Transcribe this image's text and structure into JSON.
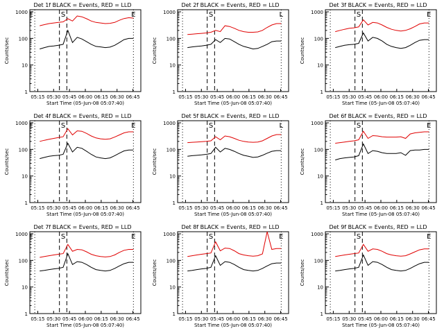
{
  "colors": {
    "events": "#000000",
    "lld": "#e00000",
    "axis": "#000000"
  },
  "common": {
    "ylabel": "Counts/sec",
    "xlabel": "Start Time (05-Jun-08 05:07:40)",
    "x_ticks": [
      "05:15",
      "05:30",
      "05:45",
      "06:00",
      "06:15",
      "06:30",
      "06:45"
    ],
    "y_ticks": [
      "1",
      "10",
      "100",
      "1000"
    ],
    "ylim": [
      1,
      1200
    ],
    "yscale": "log",
    "xlim_minutes": [
      5,
      50
    ]
  },
  "chart_data": [
    {
      "type": "line",
      "title": "Det 1f BLACK = Events, RED = LLD",
      "markers": [
        "E",
        "S",
        "E"
      ],
      "series": [
        {
          "name": "Events",
          "values": [
            40,
            45,
            50,
            52,
            55,
            60,
            200,
            70,
            110,
            95,
            75,
            60,
            50,
            48,
            45,
            47,
            55,
            70,
            90,
            100,
            100
          ]
        },
        {
          "name": "LLD",
          "values": [
            300,
            330,
            360,
            380,
            400,
            420,
            550,
            450,
            700,
            650,
            550,
            450,
            400,
            380,
            360,
            370,
            400,
            480,
            560,
            600,
            580
          ]
        }
      ]
    },
    {
      "type": "line",
      "title": "Det 2f BLACK = Events, RED = LLD",
      "markers": [
        "S",
        "L"
      ],
      "series": [
        {
          "name": "Events",
          "values": [
            45,
            48,
            50,
            52,
            55,
            60,
            90,
            70,
            100,
            95,
            75,
            60,
            50,
            45,
            40,
            42,
            50,
            60,
            75,
            80,
            80
          ]
        },
        {
          "name": "LLD",
          "values": [
            140,
            145,
            150,
            155,
            160,
            170,
            200,
            180,
            300,
            280,
            240,
            200,
            180,
            170,
            170,
            175,
            200,
            260,
            320,
            360,
            360
          ]
        }
      ]
    },
    {
      "type": "line",
      "title": "Det 3f BLACK = Events, RED = LLD",
      "markers": [
        "S",
        "E"
      ],
      "series": [
        {
          "name": "Events",
          "values": [
            45,
            50,
            55,
            58,
            60,
            65,
            160,
            80,
            110,
            100,
            80,
            60,
            50,
            45,
            42,
            45,
            55,
            70,
            85,
            90,
            90
          ]
        },
        {
          "name": "LLD",
          "values": [
            180,
            200,
            220,
            240,
            250,
            270,
            500,
            320,
            400,
            380,
            320,
            260,
            220,
            200,
            190,
            200,
            230,
            280,
            350,
            380,
            380
          ]
        }
      ]
    },
    {
      "type": "line",
      "title": "Det 4f BLACK = Events, RED = LLD",
      "markers": [
        "E",
        "S",
        "E"
      ],
      "series": [
        {
          "name": "Events",
          "values": [
            45,
            50,
            55,
            58,
            60,
            65,
            170,
            80,
            120,
            110,
            85,
            65,
            52,
            48,
            45,
            48,
            58,
            72,
            88,
            95,
            95
          ]
        },
        {
          "name": "LLD",
          "values": [
            200,
            220,
            240,
            260,
            280,
            300,
            600,
            350,
            500,
            480,
            400,
            320,
            270,
            250,
            240,
            250,
            290,
            350,
            420,
            460,
            460
          ]
        }
      ]
    },
    {
      "type": "line",
      "title": "Det 5f BLACK = Events, RED = LLD",
      "markers": [
        "S",
        "L"
      ],
      "series": [
        {
          "name": "Events",
          "values": [
            55,
            58,
            60,
            62,
            65,
            70,
            120,
            80,
            110,
            100,
            85,
            70,
            60,
            55,
            50,
            52,
            60,
            72,
            85,
            90,
            90
          ]
        },
        {
          "name": "LLD",
          "values": [
            180,
            185,
            190,
            195,
            200,
            210,
            300,
            230,
            320,
            300,
            260,
            220,
            200,
            190,
            185,
            190,
            210,
            260,
            320,
            360,
            360
          ]
        }
      ]
    },
    {
      "type": "line",
      "title": "Det 6f BLACK = Events, RED = LLD",
      "markers": [
        "S",
        "E"
      ],
      "series": [
        {
          "name": "Events",
          "values": [
            40,
            45,
            48,
            50,
            52,
            58,
            160,
            70,
            90,
            85,
            75,
            70,
            70,
            70,
            75,
            60,
            90,
            95,
            95,
            100,
            100
          ]
        },
        {
          "name": "LLD",
          "values": [
            170,
            180,
            190,
            200,
            210,
            230,
            480,
            260,
            330,
            320,
            300,
            290,
            290,
            290,
            300,
            260,
            380,
            420,
            440,
            460,
            460
          ]
        }
      ]
    },
    {
      "type": "line",
      "title": "Det 7f BLACK = Events, RED = LLD",
      "markers": [
        "E",
        "S",
        "E"
      ],
      "series": [
        {
          "name": "Events",
          "values": [
            40,
            42,
            45,
            48,
            50,
            55,
            180,
            70,
            90,
            85,
            70,
            55,
            45,
            42,
            40,
            42,
            50,
            62,
            75,
            85,
            85
          ]
        },
        {
          "name": "LLD",
          "values": [
            130,
            140,
            150,
            160,
            170,
            180,
            400,
            220,
            260,
            250,
            210,
            170,
            150,
            140,
            135,
            140,
            160,
            200,
            240,
            260,
            260
          ]
        }
      ]
    },
    {
      "type": "line",
      "title": "Det 8f BLACK = Events, RED = LLD",
      "markers": [
        "S",
        "E"
      ],
      "series": [
        {
          "name": "Events",
          "values": [
            40,
            42,
            45,
            48,
            50,
            55,
            150,
            65,
            90,
            85,
            70,
            55,
            45,
            42,
            40,
            42,
            50,
            62,
            75,
            80,
            80
          ]
        },
        {
          "name": "LLD",
          "values": [
            140,
            150,
            160,
            170,
            180,
            190,
            500,
            230,
            290,
            280,
            230,
            180,
            160,
            150,
            145,
            150,
            175,
            1200,
            260,
            280,
            280
          ]
        }
      ]
    },
    {
      "type": "line",
      "title": "Det 9f BLACK = Events, RED = LLD",
      "markers": [
        "S",
        "E"
      ],
      "series": [
        {
          "name": "Events",
          "values": [
            40,
            42,
            45,
            48,
            50,
            55,
            160,
            65,
            90,
            85,
            70,
            55,
            45,
            42,
            40,
            42,
            50,
            62,
            75,
            85,
            85
          ]
        },
        {
          "name": "LLD",
          "values": [
            140,
            150,
            160,
            170,
            180,
            190,
            400,
            220,
            270,
            260,
            220,
            180,
            160,
            150,
            145,
            150,
            175,
            210,
            250,
            270,
            270
          ]
        }
      ]
    }
  ]
}
